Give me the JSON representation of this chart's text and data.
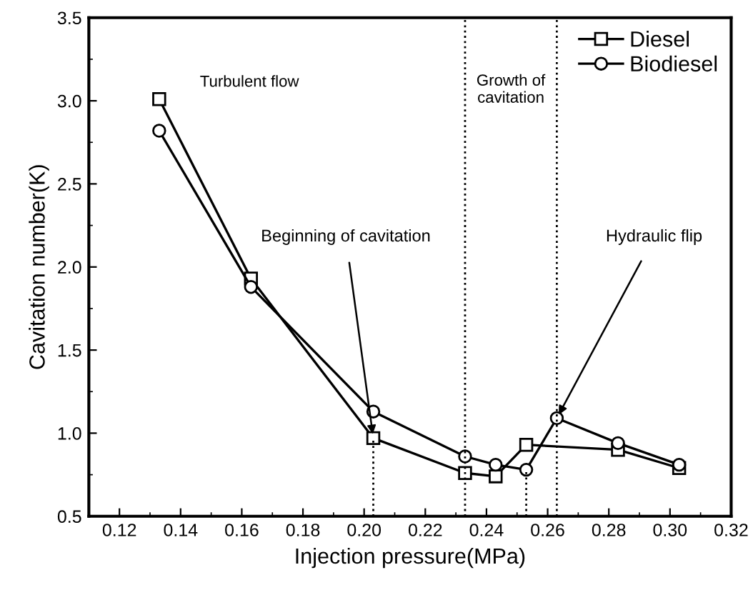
{
  "chart_data": {
    "type": "line",
    "xlabel": "Injection pressure(MPa)",
    "ylabel": "Cavitation number(K)",
    "xlim": [
      0.11,
      0.32
    ],
    "ylim": [
      0.5,
      3.5
    ],
    "xticks": [
      0.12,
      0.14,
      0.16,
      0.18,
      {
        "value": 0.2,
        "label": "0.20"
      },
      0.22,
      0.24,
      0.26,
      0.28,
      {
        "value": 0.3,
        "label": "0.30"
      },
      0.32
    ],
    "yticks": [
      0.5,
      {
        "value": 1,
        "label": "1.0"
      },
      1.5,
      {
        "value": 2,
        "label": "2.0"
      },
      2.5,
      {
        "value": 3,
        "label": "3.0"
      },
      3.5
    ],
    "grid": false,
    "legend": "top right",
    "series": [
      {
        "name": "Diesel",
        "color": "#000000",
        "marker": "square",
        "x": [
          0.133,
          0.163,
          0.203,
          0.233,
          0.243,
          0.253,
          0.283,
          0.303
        ],
        "values": [
          3.01,
          1.93,
          0.97,
          0.76,
          0.74,
          0.93,
          0.9,
          0.79
        ]
      },
      {
        "name": "Biodiesel",
        "color": "#000000",
        "marker": "circle",
        "x": [
          0.133,
          0.163,
          0.203,
          0.233,
          0.243,
          0.253,
          0.263,
          0.283,
          0.303
        ],
        "values": [
          2.82,
          1.88,
          1.13,
          0.86,
          0.81,
          0.78,
          1.09,
          0.94,
          0.81
        ]
      },
      {
        "type": "line",
        "color": "#000000",
        "marker": "none",
        "line_style": "dotted",
        "x": [
          0.203,
          0.203
        ],
        "values": [
          0.5,
          0.97
        ]
      },
      {
        "type": "line",
        "color": "#000000",
        "marker": "none",
        "line_style": "dotted",
        "x": [
          0.253,
          0.253
        ],
        "values": [
          0.5,
          0.78
        ]
      }
    ],
    "ref_lines": [
      {
        "axis": "x",
        "value": 0.233,
        "color": "#000000",
        "line_style": "dotted"
      },
      {
        "axis": "x",
        "value": 0.263,
        "color": "#000000",
        "line_style": "dotted"
      }
    ],
    "annotations": [
      "Turbulent flow",
      "Growth of\ncavitation",
      {
        "text": "Beginning of cavitation",
        "x": 0.203,
        "y": 0.97
      },
      {
        "text": "Hydraulic flip",
        "x": 0.263,
        "y": 1.09
      }
    ]
  }
}
